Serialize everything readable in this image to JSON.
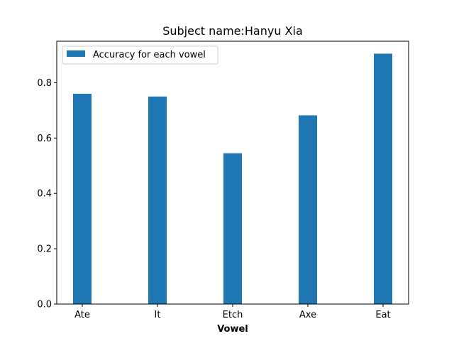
{
  "chart_data": {
    "type": "bar",
    "title": "Subject name:Hanyu Xia",
    "xlabel": "Vowel",
    "ylabel": "",
    "categories": [
      "Ate",
      "It",
      "Etch",
      "Axe",
      "Eat"
    ],
    "series": [
      {
        "name": "Accuracy for each vowel",
        "values": [
          0.76,
          0.75,
          0.545,
          0.682,
          0.905
        ],
        "color": "#1f77b4"
      }
    ],
    "ylim": [
      0,
      0.95
    ],
    "yticks": [
      0.0,
      0.2,
      0.4,
      0.6,
      0.8
    ],
    "ytick_labels": [
      "0.0",
      "0.2",
      "0.4",
      "0.6",
      "0.8"
    ],
    "grid": false,
    "legend": "top-left"
  }
}
